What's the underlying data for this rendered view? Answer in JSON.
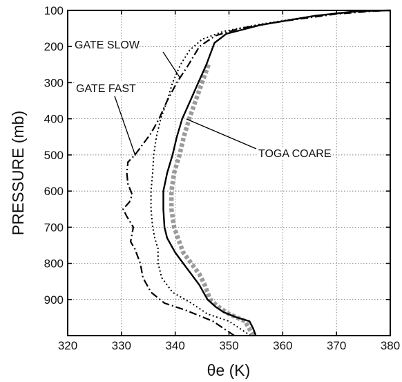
{
  "chart_data": {
    "type": "line",
    "xlabel": "θe (K)",
    "ylabel": "PRESSURE (mb)",
    "xlim": [
      320,
      380
    ],
    "ylim": [
      1000,
      100
    ],
    "y_inverted": true,
    "grid": true,
    "xticks": [
      "320",
      "330",
      "340",
      "350",
      "360",
      "370",
      "380"
    ],
    "yticks": [
      "100",
      "200",
      "300",
      "400",
      "500",
      "600",
      "700",
      "800",
      "900"
    ],
    "series": [
      {
        "name": "TOGA COARE",
        "style": "solid",
        "color": "#000000",
        "points": [
          [
            355.0,
            1000
          ],
          [
            354.5,
            980
          ],
          [
            353.8,
            960
          ],
          [
            351.5,
            950
          ],
          [
            349.0,
            935
          ],
          [
            347.5,
            920
          ],
          [
            346.0,
            900
          ],
          [
            344.5,
            860
          ],
          [
            343.0,
            830
          ],
          [
            341.5,
            800
          ],
          [
            340.0,
            770
          ],
          [
            338.5,
            730
          ],
          [
            338.0,
            700
          ],
          [
            337.8,
            650
          ],
          [
            337.8,
            600
          ],
          [
            338.5,
            550
          ],
          [
            339.5,
            500
          ],
          [
            340.3,
            450
          ],
          [
            341.3,
            400
          ],
          [
            342.8,
            350
          ],
          [
            344.3,
            300
          ],
          [
            345.8,
            250
          ],
          [
            347.3,
            190
          ],
          [
            349.5,
            165
          ],
          [
            356.0,
            140
          ],
          [
            366.0,
            115
          ],
          [
            374.0,
            102
          ],
          [
            380.0,
            100
          ]
        ]
      },
      {
        "name": "TOGA COARE (shaded)",
        "style": "stipple",
        "color": "#8a8a8a",
        "points": [
          [
            354.5,
            1000
          ],
          [
            353.0,
            960
          ],
          [
            350.0,
            940
          ],
          [
            348.0,
            920
          ],
          [
            346.5,
            900
          ],
          [
            345.5,
            860
          ],
          [
            344.5,
            830
          ],
          [
            343.0,
            800
          ],
          [
            341.5,
            770
          ],
          [
            340.5,
            730
          ],
          [
            339.8,
            700
          ],
          [
            339.3,
            650
          ],
          [
            339.3,
            600
          ],
          [
            339.8,
            550
          ],
          [
            340.8,
            500
          ],
          [
            341.6,
            450
          ],
          [
            342.6,
            400
          ],
          [
            343.8,
            350
          ],
          [
            345.0,
            300
          ],
          [
            346.2,
            250
          ]
        ]
      },
      {
        "name": "GATE SLOW",
        "style": "dotted",
        "color": "#000000",
        "points": [
          [
            354.0,
            1000
          ],
          [
            350.0,
            960
          ],
          [
            346.0,
            940
          ],
          [
            343.0,
            910
          ],
          [
            339.5,
            880
          ],
          [
            337.5,
            840
          ],
          [
            336.8,
            800
          ],
          [
            336.8,
            760
          ],
          [
            336.2,
            730
          ],
          [
            335.8,
            700
          ],
          [
            335.5,
            650
          ],
          [
            335.5,
            600
          ],
          [
            335.8,
            550
          ],
          [
            336.0,
            500
          ],
          [
            336.5,
            450
          ],
          [
            337.3,
            400
          ],
          [
            338.5,
            350
          ],
          [
            339.5,
            300
          ],
          [
            341.0,
            250
          ],
          [
            342.7,
            210
          ],
          [
            345.0,
            180
          ],
          [
            349.0,
            158
          ],
          [
            356.0,
            138
          ],
          [
            366.0,
            115
          ],
          [
            374.0,
            103
          ],
          [
            378.0,
            100
          ]
        ]
      },
      {
        "name": "GATE FAST",
        "style": "dash-dot",
        "color": "#000000",
        "points": [
          [
            351.0,
            1000
          ],
          [
            347.0,
            960
          ],
          [
            342.0,
            930
          ],
          [
            338.0,
            910
          ],
          [
            335.5,
            880
          ],
          [
            334.0,
            840
          ],
          [
            333.5,
            800
          ],
          [
            332.5,
            760
          ],
          [
            331.7,
            740
          ],
          [
            332.2,
            700
          ],
          [
            331.0,
            670
          ],
          [
            330.3,
            650
          ],
          [
            331.5,
            630
          ],
          [
            332.0,
            610
          ],
          [
            331.2,
            580
          ],
          [
            331.0,
            550
          ],
          [
            331.2,
            520
          ],
          [
            332.5,
            500
          ],
          [
            333.5,
            480
          ],
          [
            334.5,
            460
          ],
          [
            335.5,
            440
          ],
          [
            337.0,
            400
          ],
          [
            338.5,
            350
          ],
          [
            340.3,
            300
          ],
          [
            342.5,
            250
          ],
          [
            344.5,
            200
          ],
          [
            347.5,
            170
          ],
          [
            352.0,
            150
          ],
          [
            360.0,
            130
          ],
          [
            370.0,
            110
          ],
          [
            377.0,
            102
          ],
          [
            380.0,
            100
          ]
        ]
      }
    ],
    "annotations": [
      {
        "text": "GATE SLOW",
        "points_to_series": "GATE SLOW"
      },
      {
        "text": "GATE FAST",
        "points_to_series": "GATE FAST"
      },
      {
        "text": "TOGA COARE",
        "points_to_series": "TOGA COARE"
      }
    ]
  }
}
